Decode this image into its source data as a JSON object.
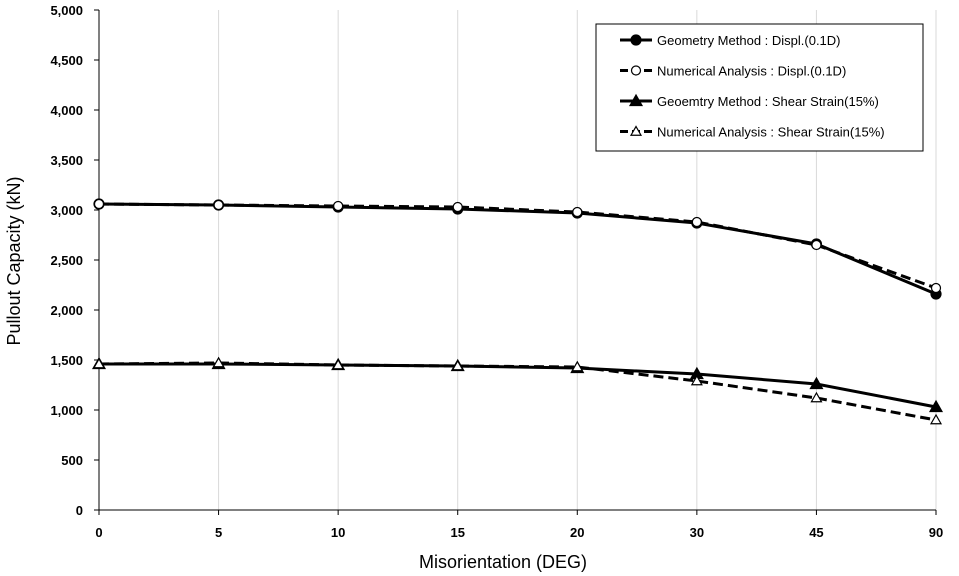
{
  "chart_data": {
    "type": "line",
    "title": "",
    "xlabel": "Misorientation (DEG)",
    "ylabel": "Pullout Capacity (kN)",
    "categories": [
      "0",
      "5",
      "10",
      "15",
      "20",
      "30",
      "45",
      "90"
    ],
    "y_ticks": [
      "0",
      "500",
      "1,000",
      "1,500",
      "2,000",
      "2,500",
      "3,000",
      "3,500",
      "4,000",
      "4,500",
      "5,000"
    ],
    "ylim": [
      0,
      5000
    ],
    "grid": "vertical",
    "legend_position": "top-right",
    "series": [
      {
        "name": "Geometry Method : Displ.(0.1D)",
        "values": [
          3060,
          3050,
          3030,
          3010,
          2970,
          2870,
          2660,
          2160
        ],
        "marker": "filled-circle",
        "dashed": false,
        "color": "#000000"
      },
      {
        "name": "Numerical Analysis : Displ.(0.1D)",
        "values": [
          3060,
          3050,
          3040,
          3030,
          2980,
          2880,
          2650,
          2220
        ],
        "marker": "open-circle",
        "dashed": true,
        "color": "#000000"
      },
      {
        "name": "Geoemtry Method : Shear Strain(15%)",
        "values": [
          1460,
          1460,
          1450,
          1440,
          1420,
          1360,
          1260,
          1030
        ],
        "marker": "filled-triangle",
        "dashed": false,
        "color": "#000000"
      },
      {
        "name": "Numerical Analysis : Shear Strain(15%)",
        "values": [
          1460,
          1470,
          1450,
          1440,
          1430,
          1290,
          1120,
          900
        ],
        "marker": "open-triangle",
        "dashed": true,
        "color": "#000000"
      }
    ]
  }
}
